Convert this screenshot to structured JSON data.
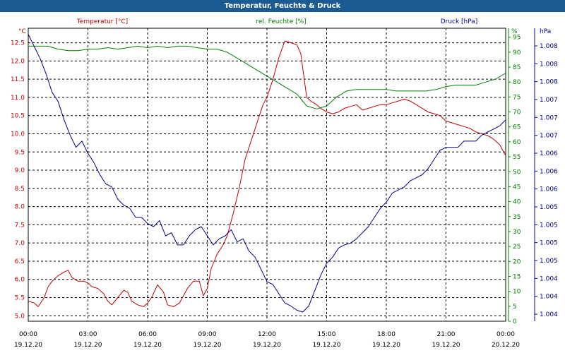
{
  "window": {
    "title": "Temperatur, Feuchte & Druck"
  },
  "chart_data": {
    "type": "line",
    "title": "Temperatur, Feuchte & Druck",
    "grid": true,
    "xlim": [
      "19.12.20 00:00",
      "20.12.20 00:00"
    ],
    "x_ticks": [
      {
        "time": "00:00",
        "date": "19.12.20"
      },
      {
        "time": "03:00",
        "date": "19.12.20"
      },
      {
        "time": "06:00",
        "date": "19.12.20"
      },
      {
        "time": "09:00",
        "date": "19.12.20"
      },
      {
        "time": "12:00",
        "date": "19.12.20"
      },
      {
        "time": "15:00",
        "date": "19.12.20"
      },
      {
        "time": "18:00",
        "date": "19.12.20"
      },
      {
        "time": "21:00",
        "date": "19.12.20"
      },
      {
        "time": "00:00",
        "date": "20.12.20"
      }
    ],
    "axes": {
      "temperature": {
        "label": "Temperatur [°C]",
        "unit": "°C",
        "color": "#c00000",
        "ylim": [
          4.85,
          12.9
        ],
        "ticks": [
          "5.0",
          "5.5",
          "6.0",
          "6.5",
          "7.0",
          "7.5",
          "8.0",
          "8.5",
          "9.0",
          "9.5",
          "10.0",
          "10.5",
          "11.0",
          "11.5",
          "12.0",
          "12.5"
        ]
      },
      "humidity": {
        "label": "rel. Feuchte [%]",
        "unit": "%",
        "color": "#008000",
        "ylim": [
          0,
          98
        ],
        "ticks": [
          "0",
          "5",
          "10",
          "15",
          "20",
          "25",
          "30",
          "35",
          "40",
          "45",
          "50",
          "55",
          "60",
          "65",
          "70",
          "75",
          "80",
          "85",
          "90",
          "95"
        ]
      },
      "pressure": {
        "label": "Druck [hPa]",
        "unit": "hPa",
        "color": "#00008b",
        "ylim": [
          1003.7,
          1008.5
        ],
        "ticks": [
          "1.004",
          "1.004",
          "1.004",
          "1.005",
          "1.005",
          "1.005",
          "1.005",
          "1.006",
          "1.006",
          "1.006",
          "1.007",
          "1.007",
          "1.007",
          "1.008",
          "1.008",
          "1.008"
        ]
      }
    },
    "series": [
      {
        "name": "Temperatur [°C]",
        "axis": "temperature",
        "color": "#c00000",
        "x": [
          0,
          0.3,
          0.5,
          0.8,
          1.0,
          1.2,
          1.5,
          1.8,
          2.0,
          2.2,
          2.5,
          2.8,
          3.0,
          3.2,
          3.5,
          3.8,
          4.0,
          4.2,
          4.5,
          4.8,
          5.0,
          5.2,
          5.5,
          5.8,
          6.0,
          6.2,
          6.5,
          6.8,
          7.0,
          7.3,
          7.6,
          7.8,
          8.0,
          8.3,
          8.6,
          8.8,
          9.0,
          9.2,
          9.5,
          9.8,
          10.0,
          10.3,
          10.6,
          10.9,
          11.2,
          11.5,
          11.8,
          12.0,
          12.3,
          12.6,
          12.9,
          13.2,
          13.5,
          13.7,
          14.0,
          14.2,
          14.5,
          14.7,
          15.0,
          15.3,
          15.6,
          15.9,
          16.2,
          16.5,
          16.8,
          17.1,
          17.4,
          17.7,
          18.0,
          18.3,
          18.6,
          18.9,
          19.2,
          19.5,
          19.8,
          20.1,
          20.4,
          20.7,
          21.0,
          21.3,
          21.6,
          21.9,
          22.2,
          22.5,
          22.8,
          23.1,
          23.4,
          23.7,
          24.0
        ],
        "y": [
          5.4,
          5.35,
          5.25,
          5.5,
          5.8,
          5.95,
          6.1,
          6.2,
          6.25,
          6.05,
          5.95,
          5.95,
          5.9,
          5.8,
          5.75,
          5.6,
          5.4,
          5.3,
          5.5,
          5.7,
          5.65,
          5.4,
          5.3,
          5.25,
          5.35,
          5.5,
          5.85,
          5.65,
          5.3,
          5.25,
          5.35,
          5.55,
          5.75,
          5.95,
          5.95,
          5.55,
          5.75,
          6.3,
          6.7,
          6.95,
          7.2,
          7.8,
          8.5,
          9.3,
          9.8,
          10.3,
          10.8,
          11.0,
          11.5,
          12.1,
          12.55,
          12.5,
          12.45,
          12.2,
          11.0,
          10.9,
          10.8,
          10.7,
          10.6,
          10.55,
          10.6,
          10.7,
          10.75,
          10.8,
          10.65,
          10.7,
          10.75,
          10.8,
          10.8,
          10.85,
          10.9,
          10.95,
          10.9,
          10.8,
          10.7,
          10.6,
          10.55,
          10.5,
          10.35,
          10.3,
          10.25,
          10.2,
          10.15,
          10.05,
          10.0,
          9.95,
          9.85,
          9.7,
          9.4
        ]
      },
      {
        "name": "rel. Feuchte [%]",
        "axis": "humidity",
        "color": "#008000",
        "x": [
          0,
          0.5,
          1.0,
          1.5,
          2.0,
          2.5,
          3.0,
          3.5,
          4.0,
          4.5,
          5.0,
          5.5,
          6.0,
          6.5,
          7.0,
          7.5,
          8.0,
          8.5,
          9.0,
          9.5,
          10.0,
          10.5,
          11.0,
          11.5,
          12.0,
          12.5,
          13.0,
          13.5,
          14.0,
          14.5,
          15.0,
          15.5,
          16.0,
          16.5,
          17.0,
          17.5,
          18.0,
          18.5,
          19.0,
          19.5,
          20.0,
          20.5,
          21.0,
          21.5,
          22.0,
          22.5,
          23.0,
          23.5,
          24.0
        ],
        "y": [
          92,
          92,
          92,
          91,
          90.5,
          90.5,
          91,
          91,
          91.5,
          91,
          91.5,
          92,
          91.5,
          92,
          91.5,
          92,
          92,
          91.5,
          91,
          91,
          90,
          88,
          86,
          84,
          82,
          80,
          78,
          76,
          72,
          71,
          72,
          75,
          77,
          77.5,
          77.5,
          77.5,
          77.5,
          77,
          77,
          77,
          77,
          77.5,
          78.5,
          79,
          79,
          79,
          80,
          81,
          83
        ]
      },
      {
        "name": "Druck [hPa]",
        "axis": "pressure",
        "color": "#00008b",
        "x": [
          0,
          0.3,
          0.6,
          0.9,
          1.2,
          1.5,
          1.8,
          2.1,
          2.4,
          2.7,
          3.0,
          3.3,
          3.6,
          3.9,
          4.2,
          4.5,
          4.8,
          5.1,
          5.4,
          5.7,
          6.0,
          6.3,
          6.6,
          6.9,
          7.2,
          7.5,
          7.8,
          8.1,
          8.4,
          8.7,
          9.0,
          9.3,
          9.6,
          9.9,
          10.2,
          10.5,
          10.8,
          11.1,
          11.4,
          11.7,
          12.0,
          12.3,
          12.6,
          12.9,
          13.2,
          13.5,
          13.8,
          14.1,
          14.4,
          14.7,
          15.0,
          15.3,
          15.6,
          15.9,
          16.2,
          16.5,
          16.8,
          17.1,
          17.4,
          17.7,
          18.0,
          18.3,
          18.6,
          18.9,
          19.2,
          19.5,
          19.8,
          20.1,
          20.4,
          20.7,
          21.0,
          21.3,
          21.6,
          21.9,
          22.2,
          22.5,
          22.8,
          23.1,
          23.4,
          23.7,
          24.0
        ],
        "y": [
          1008.4,
          1008.2,
          1008.0,
          1007.75,
          1007.45,
          1007.3,
          1007.0,
          1006.75,
          1006.55,
          1006.65,
          1006.45,
          1006.3,
          1006.1,
          1005.95,
          1005.9,
          1005.7,
          1005.6,
          1005.55,
          1005.4,
          1005.4,
          1005.3,
          1005.25,
          1005.35,
          1005.1,
          1005.15,
          1004.95,
          1004.95,
          1005.1,
          1005.2,
          1005.25,
          1005.1,
          1004.95,
          1005.05,
          1005.1,
          1005.2,
          1005.0,
          1005.05,
          1004.85,
          1004.75,
          1004.55,
          1004.35,
          1004.3,
          1004.15,
          1004.0,
          1003.95,
          1003.88,
          1003.85,
          1003.95,
          1004.2,
          1004.45,
          1004.65,
          1004.75,
          1004.9,
          1004.95,
          1004.98,
          1005.05,
          1005.15,
          1005.25,
          1005.4,
          1005.55,
          1005.65,
          1005.8,
          1005.85,
          1005.9,
          1006.0,
          1006.05,
          1006.1,
          1006.2,
          1006.35,
          1006.5,
          1006.55,
          1006.55,
          1006.55,
          1006.65,
          1006.65,
          1006.65,
          1006.75,
          1006.8,
          1006.85,
          1006.9,
          1007.0
        ]
      }
    ]
  }
}
